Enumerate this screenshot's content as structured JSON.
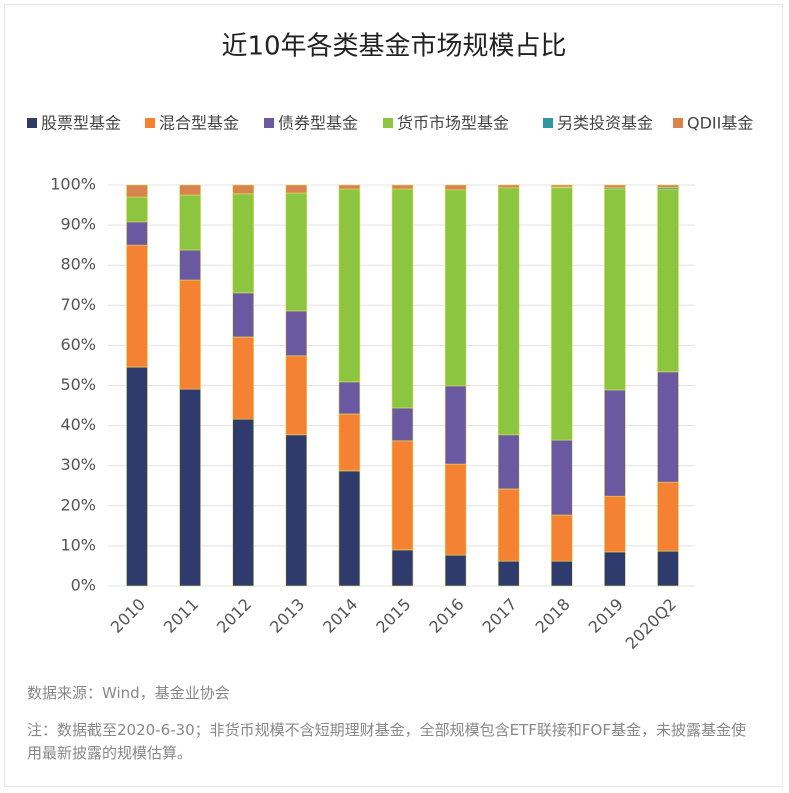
{
  "chart_data": {
    "type": "stacked_bar",
    "title": "近10年各类基金市场规模占比",
    "categories": [
      "2010",
      "2011",
      "2012",
      "2013",
      "2014",
      "2015",
      "2016",
      "2017",
      "2018",
      "2019",
      "2020Q2"
    ],
    "series": [
      {
        "name": "股票型基金",
        "color": "#2f3a6d",
        "values": [
          54.6,
          49.1,
          41.6,
          37.7,
          28.7,
          9.0,
          7.7,
          6.2,
          6.2,
          8.5,
          8.7
        ]
      },
      {
        "name": "混合型基金",
        "color": "#f58233",
        "values": [
          30.4,
          27.2,
          20.5,
          19.7,
          14.2,
          27.2,
          22.7,
          18.0,
          11.5,
          13.9,
          17.2
        ]
      },
      {
        "name": "债券型基金",
        "color": "#6a58a0",
        "values": [
          5.8,
          7.5,
          11.0,
          11.2,
          8.0,
          8.2,
          19.5,
          13.5,
          18.7,
          26.5,
          27.5
        ]
      },
      {
        "name": "货币市场型基金",
        "color": "#8cc540",
        "values": [
          6.2,
          13.7,
          24.7,
          29.4,
          48.1,
          54.6,
          48.9,
          61.6,
          62.9,
          50.1,
          45.6
        ]
      },
      {
        "name": "另类投资基金",
        "color": "#2a9a9c",
        "values": [
          0,
          0,
          0,
          0,
          0,
          0,
          0,
          0,
          0.2,
          0.3,
          0.4
        ]
      },
      {
        "name": "QDII基金",
        "color": "#d9834e",
        "values": [
          3.0,
          2.5,
          2.2,
          2.0,
          1.0,
          1.0,
          1.2,
          0.7,
          0.5,
          0.7,
          0.6
        ]
      }
    ],
    "ylim": [
      0,
      100
    ],
    "yticks": [
      {
        "value": 0,
        "label": "0%"
      },
      {
        "value": 10,
        "label": "10%"
      },
      {
        "value": 20,
        "label": "20%"
      },
      {
        "value": 30,
        "label": "30%"
      },
      {
        "value": 40,
        "label": "40%"
      },
      {
        "value": 50,
        "label": "50%"
      },
      {
        "value": 60,
        "label": "60%"
      },
      {
        "value": 70,
        "label": "70%"
      },
      {
        "value": 80,
        "label": "80%"
      },
      {
        "value": 90,
        "label": "90%"
      },
      {
        "value": 100,
        "label": "100%"
      }
    ],
    "grid": true,
    "legend": "top",
    "source": "数据来源：Wind，基金业协会",
    "note": "注：数据截至2020-6-30；非货币规模不含短期理财基金，全部规模包含ETF联接和FOF基金，未披露基金使用最新披露的规模估算。"
  }
}
